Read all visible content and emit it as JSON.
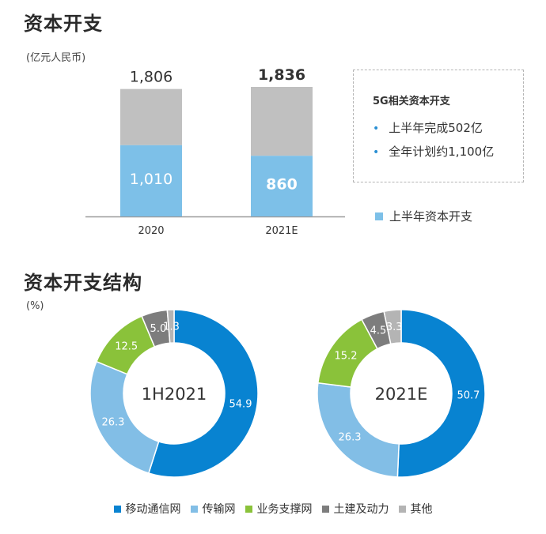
{
  "section1": {
    "title": "资本开支",
    "unit": "(亿元人民币)"
  },
  "section2": {
    "title": "资本开支结构",
    "unit": "(%)"
  },
  "callout": {
    "title": "5G相关资本开支",
    "items": [
      "上半年完成502亿",
      "全年计划约1,100亿"
    ]
  },
  "legend_top": {
    "label": "上半年资本开支"
  },
  "colors": {
    "total": "#c0c0c0",
    "half": "#7dc0e8",
    "mobile": "#0883d1",
    "transmission": "#82bee6",
    "support": "#8ac23a",
    "civil": "#7d7d7d",
    "other": "#b4b4b4"
  },
  "chart_data": [
    {
      "type": "bar",
      "categories": [
        "2020",
        "2021E"
      ],
      "series": [
        {
          "name": "上半年资本开支",
          "values": [
            1010,
            860
          ],
          "labels": [
            "1,010",
            "860"
          ]
        },
        {
          "values": [
            1806,
            1836
          ],
          "labels": [
            "1,806",
            "1,836"
          ]
        }
      ]
    },
    {
      "type": "pie",
      "center_label": "1H2021",
      "slices": [
        {
          "name": "移动通信网",
          "value": 54.9,
          "label": "54.9"
        },
        {
          "name": "传输网",
          "value": 26.3,
          "label": "26.3"
        },
        {
          "name": "业务支撑网",
          "value": 12.5,
          "label": "12.5"
        },
        {
          "name": "土建及动力",
          "value": 5.0,
          "label": "5.0"
        },
        {
          "name": "其他",
          "value": 1.3,
          "label": "1.3"
        }
      ]
    },
    {
      "type": "pie",
      "center_label": "2021E",
      "slices": [
        {
          "name": "移动通信网",
          "value": 50.7,
          "label": "50.7"
        },
        {
          "name": "传输网",
          "value": 26.3,
          "label": "26.3"
        },
        {
          "name": "业务支撑网",
          "value": 15.2,
          "label": "15.2"
        },
        {
          "name": "土建及动力",
          "value": 4.5,
          "label": "4.5"
        },
        {
          "name": "其他",
          "value": 3.3,
          "label": "3.3"
        }
      ]
    }
  ]
}
